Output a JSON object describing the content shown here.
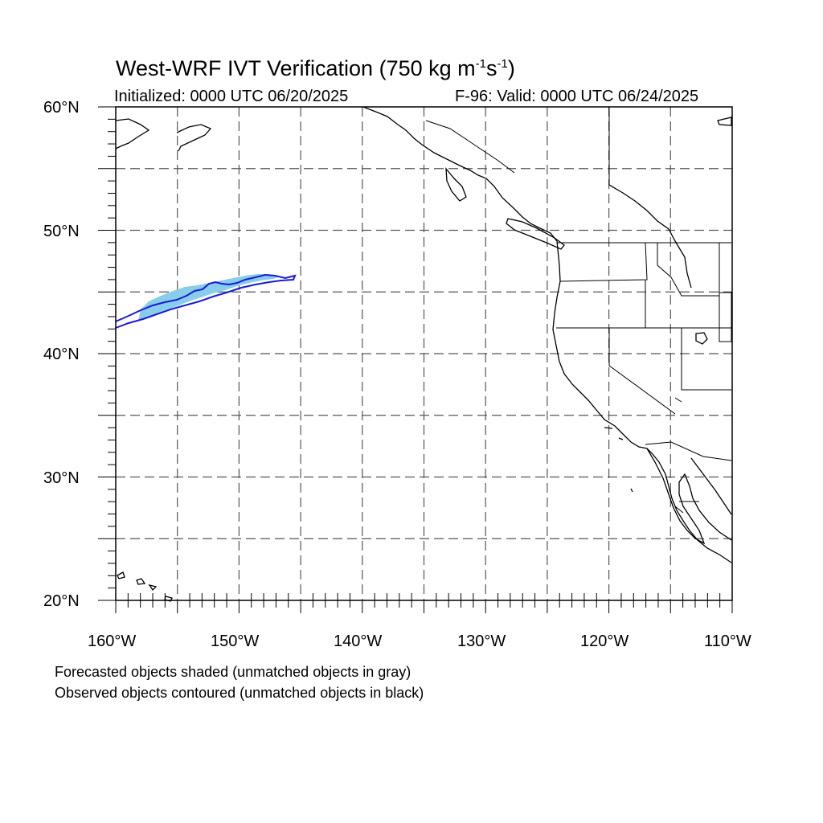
{
  "title": {
    "prefix": "West-WRF IVT Verification (750 kg m",
    "sup1": "-1",
    "mid": "s",
    "sup2": "-1",
    "suffix": ")"
  },
  "initialized": "Initialized: 0000 UTC 06/20/2025",
  "valid": "F-96: Valid: 0000 UTC 06/24/2025",
  "lat_labels": [
    "60°N",
    "50°N",
    "40°N",
    "30°N",
    "20°N"
  ],
  "lon_labels": [
    "160°W",
    "150°W",
    "140°W",
    "130°W",
    "120°W",
    "110°W"
  ],
  "legend": {
    "line1": "Forecasted objects shaded (unmatched objects in gray)",
    "line2": "Observed objects contoured (unmatched objects in black)"
  },
  "map": {
    "lon_range": [
      -160,
      -110
    ],
    "lat_range": [
      20,
      60
    ],
    "grid_spacing_deg": 5,
    "grid_style": "dashed",
    "forecast_color": "#87ceeb",
    "observed_color": "#1a1adb",
    "coast_color": "#000000"
  }
}
